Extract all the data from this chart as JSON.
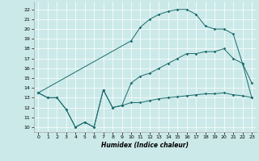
{
  "xlabel": "Humidex (Indice chaleur)",
  "background_color": "#cce9e9",
  "line_color": "#1a6b6b",
  "xlim": [
    -0.5,
    23.5
  ],
  "ylim": [
    9.5,
    22.8
  ],
  "x_ticks": [
    0,
    1,
    2,
    3,
    4,
    5,
    6,
    7,
    8,
    9,
    10,
    11,
    12,
    13,
    14,
    15,
    16,
    17,
    18,
    19,
    20,
    21,
    22,
    23
  ],
  "y_ticks": [
    10,
    11,
    12,
    13,
    14,
    15,
    16,
    17,
    18,
    19,
    20,
    21,
    22
  ],
  "s1_x": [
    0,
    1,
    2,
    3,
    4,
    5,
    6,
    7,
    8,
    9,
    10,
    11,
    12,
    13,
    14,
    15,
    16,
    17,
    18,
    19,
    20,
    21,
    22,
    23
  ],
  "s1_y": [
    13.5,
    13.0,
    13.0,
    11.8,
    10.0,
    10.5,
    10.0,
    13.8,
    12.0,
    12.2,
    12.5,
    12.5,
    12.7,
    12.9,
    13.0,
    13.1,
    13.2,
    13.3,
    13.4,
    13.4,
    13.5,
    13.3,
    13.2,
    13.0
  ],
  "s2_x": [
    0,
    1,
    2,
    3,
    4,
    5,
    6,
    7,
    8,
    9,
    10,
    11,
    12,
    13,
    14,
    15,
    16,
    17,
    18,
    19,
    20,
    21,
    22,
    23
  ],
  "s2_y": [
    13.5,
    13.0,
    13.0,
    11.8,
    10.0,
    10.5,
    10.0,
    13.8,
    12.0,
    12.2,
    14.5,
    15.2,
    15.5,
    16.0,
    16.5,
    17.0,
    17.5,
    17.5,
    17.7,
    17.7,
    18.0,
    17.0,
    16.5,
    13.0
  ],
  "s3_x": [
    0,
    10,
    11,
    12,
    13,
    14,
    15,
    16,
    17,
    18,
    19,
    20,
    21,
    22,
    23
  ],
  "s3_y": [
    13.5,
    18.8,
    20.2,
    21.0,
    21.5,
    21.8,
    22.0,
    22.0,
    21.5,
    20.3,
    20.0,
    20.0,
    19.5,
    16.5,
    14.5
  ]
}
